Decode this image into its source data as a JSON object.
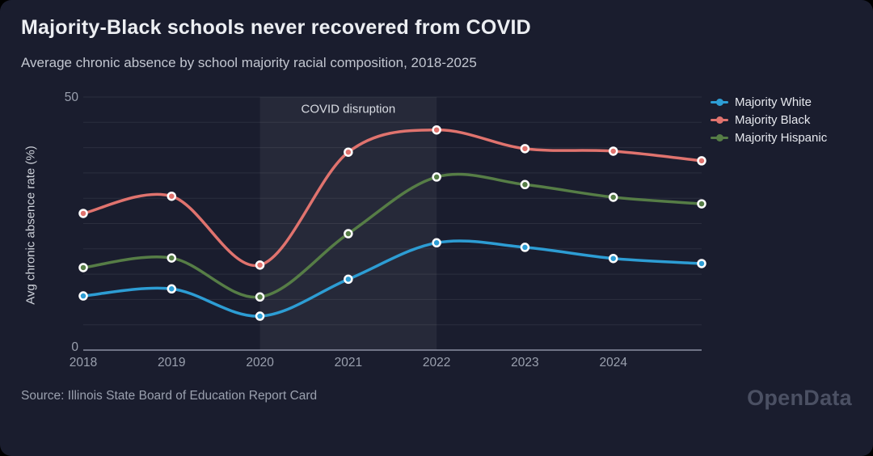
{
  "header": {
    "title": "Majority-Black schools never recovered from COVID",
    "subtitle": "Average chronic absence by school majority racial composition, 2018-2025"
  },
  "footer": {
    "source": "Source: Illinois State Board of Education Report Card",
    "watermark": "OpenData"
  },
  "colors": {
    "canvas": "#000000",
    "card": "#1a1d2e",
    "grid": "rgba(255,255,255,0.08)",
    "axis_line": "#8b90a2",
    "tick_label": "#9aa0ae",
    "band_fill": "rgba(255,255,255,0.055)",
    "band_label": "#d8dbe2",
    "marker_ring": "#ffffff"
  },
  "chart_data": {
    "type": "line",
    "title": "Majority-Black schools never recovered from COVID",
    "subtitle": "Average chronic absence by school majority racial composition, 2018-2025",
    "xlabel": "",
    "ylabel": "Avg chronic absence rate (%)",
    "x": [
      2018,
      2019,
      2020,
      2021,
      2022,
      2023,
      2024,
      2025
    ],
    "x_tick_labels": [
      "2018",
      "2019",
      "2020",
      "2021",
      "2022",
      "2023",
      "2024"
    ],
    "ylim": [
      0,
      50
    ],
    "y_tick_labels": [
      "0",
      "50"
    ],
    "gridline_step": 5,
    "grid": "horizontal-only",
    "legend_position": "top-right",
    "annotation_band": {
      "x_start": 2020,
      "x_end": 2022,
      "label": "COVID disruption"
    },
    "series": [
      {
        "name": "Majority White",
        "color": "#2d9dd4",
        "values": [
          10.7,
          12.1,
          6.7,
          14.0,
          21.2,
          20.3,
          18.1,
          17.1
        ]
      },
      {
        "name": "Majority Black",
        "color": "#e0736e",
        "values": [
          27.0,
          30.4,
          16.8,
          39.1,
          43.5,
          39.8,
          39.3,
          37.4
        ]
      },
      {
        "name": "Majority Hispanic",
        "color": "#567d46",
        "values": [
          16.3,
          18.2,
          10.5,
          23.0,
          34.2,
          32.7,
          30.2,
          28.9
        ]
      }
    ]
  }
}
